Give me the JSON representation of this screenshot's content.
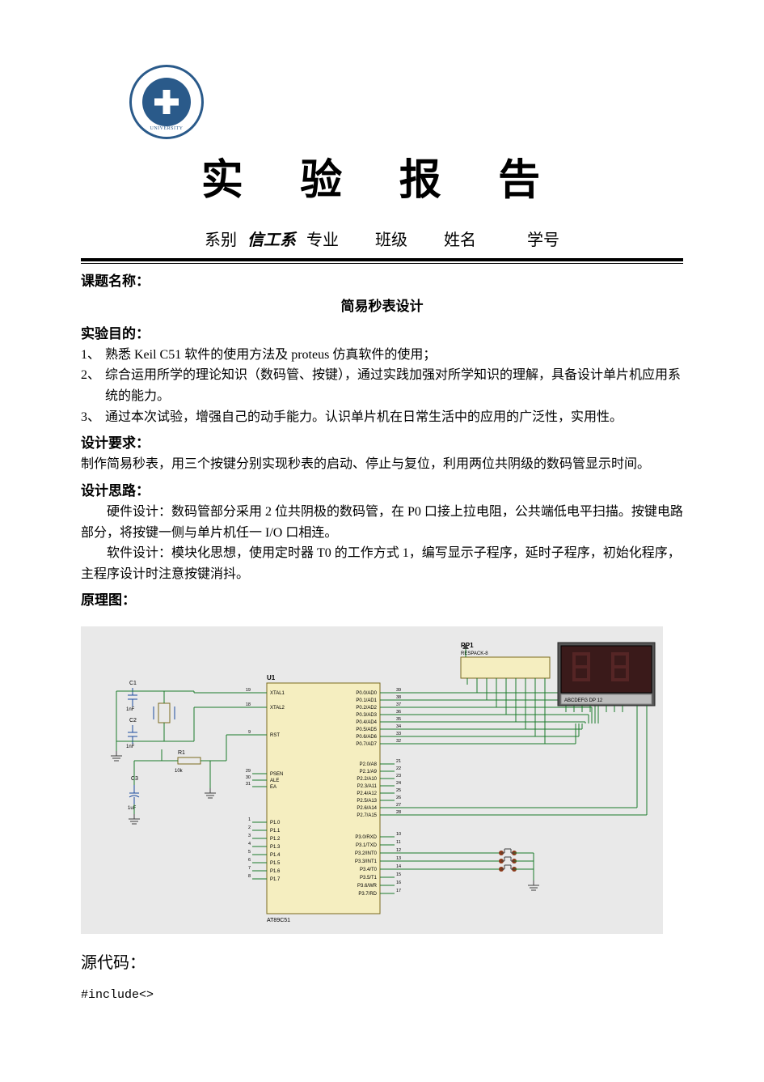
{
  "logo": {
    "top_text": "",
    "bottom_text": "UNIVERSITY"
  },
  "title": "实 验 报 告",
  "form": {
    "dept_label": "系别",
    "dept_value": "信工系",
    "major_label": "专业",
    "class_label": "班级",
    "name_label": "姓名",
    "id_label": "学号"
  },
  "topic": {
    "label": "课题名称：",
    "value": "简易秒表设计"
  },
  "objective": {
    "label": "实验目的：",
    "items": [
      "熟悉 Keil C51 软件的使用方法及 proteus 仿真软件的使用；",
      "综合运用所学的理论知识（数码管、按键），通过实践加强对所学知识的理解，具备设计单片机应用系统的能力。",
      "通过本次试验，增强自己的动手能力。认识单片机在日常生活中的应用的广泛性，实用性。"
    ]
  },
  "requirement": {
    "label": "设计要求：",
    "text": "制作简易秒表，用三个按键分别实现秒表的启动、停止与复位，利用两位共阴级的数码管显示时间。"
  },
  "idea": {
    "label": "设计思路：",
    "hw": "硬件设计：数码管部分采用 2 位共阴极的数码管，在 P0 口接上拉电阻，公共端低电平扫描。按键电路部分，将按键一侧与单片机任一 I/O 口相连。",
    "sw": "软件设计：模块化思想，使用定时器 T0 的工作方式 1，编写显示子程序，延时子程序，初始化程序，主程序设计时注意按键消抖。"
  },
  "schematic_label": "原理图：",
  "circuit": {
    "bg": "#e9e9e9",
    "wire_color": "#1a7a2a",
    "box_fill": "#f5eec0",
    "box_stroke": "#7a6a20",
    "text_color": "#000000",
    "display_bg": "#3a1a1a",
    "display_segment": "#552525",
    "rp1": {
      "label": "RP1",
      "sub": "RESPACK-8"
    },
    "mcu": {
      "name": "U1",
      "part": "AT89C51",
      "left_pins_xtal": [
        {
          "num": "19",
          "name": "XTAL1"
        },
        {
          "num": "18",
          "name": "XTAL2"
        }
      ],
      "left_pin_rst": {
        "num": "9",
        "name": "RST"
      },
      "left_pins_ctrl": [
        {
          "num": "29",
          "name": "PSEN"
        },
        {
          "num": "30",
          "name": "ALE"
        },
        {
          "num": "31",
          "name": "EA"
        }
      ],
      "left_pins_p1": [
        {
          "num": "1",
          "name": "P1.0"
        },
        {
          "num": "2",
          "name": "P1.1"
        },
        {
          "num": "3",
          "name": "P1.2"
        },
        {
          "num": "4",
          "name": "P1.3"
        },
        {
          "num": "5",
          "name": "P1.4"
        },
        {
          "num": "6",
          "name": "P1.5"
        },
        {
          "num": "7",
          "name": "P1.6"
        },
        {
          "num": "8",
          "name": "P1.7"
        }
      ],
      "right_pins_p0": [
        {
          "num": "39",
          "name": "P0.0/AD0"
        },
        {
          "num": "38",
          "name": "P0.1/AD1"
        },
        {
          "num": "37",
          "name": "P0.2/AD2"
        },
        {
          "num": "36",
          "name": "P0.3/AD3"
        },
        {
          "num": "35",
          "name": "P0.4/AD4"
        },
        {
          "num": "34",
          "name": "P0.5/AD5"
        },
        {
          "num": "33",
          "name": "P0.6/AD6"
        },
        {
          "num": "32",
          "name": "P0.7/AD7"
        }
      ],
      "right_pins_p2": [
        {
          "num": "21",
          "name": "P2.0/A8"
        },
        {
          "num": "22",
          "name": "P2.1/A9"
        },
        {
          "num": "23",
          "name": "P2.2/A10"
        },
        {
          "num": "24",
          "name": "P2.3/A11"
        },
        {
          "num": "25",
          "name": "P2.4/A12"
        },
        {
          "num": "26",
          "name": "P2.5/A13"
        },
        {
          "num": "27",
          "name": "P2.6/A14"
        },
        {
          "num": "28",
          "name": "P2.7/A15"
        }
      ],
      "right_pins_p3": [
        {
          "num": "10",
          "name": "P3.0/RXD"
        },
        {
          "num": "11",
          "name": "P3.1/TXD"
        },
        {
          "num": "12",
          "name": "P3.2/INT0"
        },
        {
          "num": "13",
          "name": "P3.3/INT1"
        },
        {
          "num": "14",
          "name": "P3.4/T0"
        },
        {
          "num": "15",
          "name": "P3.5/T1"
        },
        {
          "num": "16",
          "name": "P3.6/WR"
        },
        {
          "num": "17",
          "name": "P3.7/RD"
        }
      ]
    },
    "caps": [
      {
        "name": "C1",
        "val": "1nF"
      },
      {
        "name": "C2",
        "val": "1nF"
      },
      {
        "name": "C3",
        "val": "1uF"
      }
    ],
    "res": {
      "name": "R1",
      "val": "10k"
    },
    "display_legend": "ABCDEFG DP    12"
  },
  "source_label": "源代码：",
  "code_line": "#include<>"
}
